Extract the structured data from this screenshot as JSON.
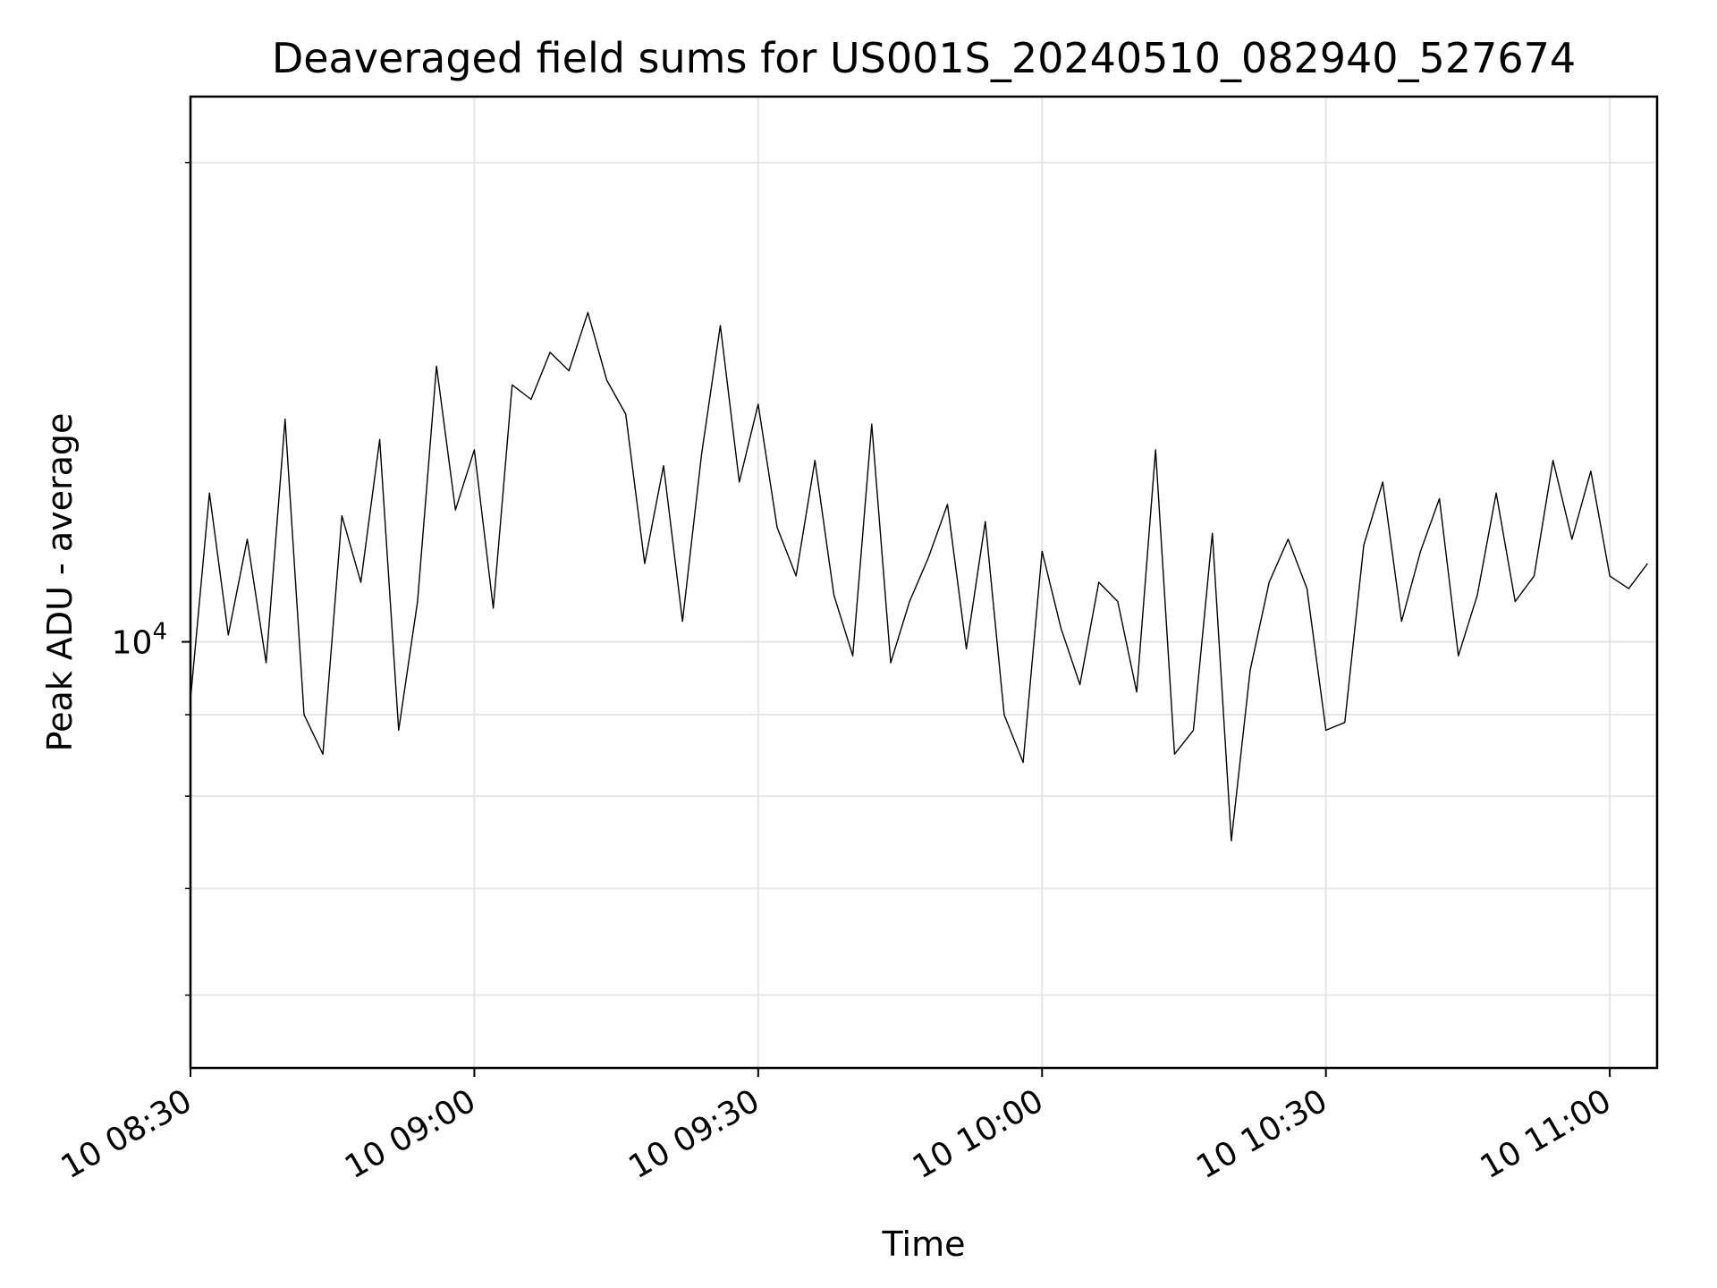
{
  "chart_data": {
    "type": "line",
    "title": "Deaveraged field sums for US001S_20240510_082940_527674",
    "xlabel": "Time",
    "ylabel": "Peak ADU - average",
    "yscale": "log",
    "grid": true,
    "line_color": "#000000",
    "xlim": [
      "2024-05-10 08:30",
      "2024-05-10 11:05"
    ],
    "ylim": [
      5400,
      22000
    ],
    "x_ticks": [
      {
        "label": "10 08:30",
        "value": "2024-05-10 08:30"
      },
      {
        "label": "10 09:00",
        "value": "2024-05-10 09:00"
      },
      {
        "label": "10 09:30",
        "value": "2024-05-10 09:30"
      },
      {
        "label": "10 10:00",
        "value": "2024-05-10 10:00"
      },
      {
        "label": "10 10:30",
        "value": "2024-05-10 10:30"
      },
      {
        "label": "10 11:00",
        "value": "2024-05-10 11:00"
      }
    ],
    "y_ticks": [
      {
        "label": "10",
        "sup": "4",
        "value": 10000
      }
    ],
    "series": [
      {
        "x": [
          "2024-05-10 08:30",
          "2024-05-10 08:32",
          "2024-05-10 08:34",
          "2024-05-10 08:36",
          "2024-05-10 08:38",
          "2024-05-10 08:40",
          "2024-05-10 08:42",
          "2024-05-10 08:44",
          "2024-05-10 08:46",
          "2024-05-10 08:48",
          "2024-05-10 08:50",
          "2024-05-10 08:52",
          "2024-05-10 08:54",
          "2024-05-10 08:56",
          "2024-05-10 08:58",
          "2024-05-10 09:00",
          "2024-05-10 09:02",
          "2024-05-10 09:04",
          "2024-05-10 09:06",
          "2024-05-10 09:08",
          "2024-05-10 09:10",
          "2024-05-10 09:12",
          "2024-05-10 09:14",
          "2024-05-10 09:16",
          "2024-05-10 09:18",
          "2024-05-10 09:20",
          "2024-05-10 09:22",
          "2024-05-10 09:24",
          "2024-05-10 09:26",
          "2024-05-10 09:28",
          "2024-05-10 09:30",
          "2024-05-10 09:32",
          "2024-05-10 09:34",
          "2024-05-10 09:36",
          "2024-05-10 09:38",
          "2024-05-10 09:40",
          "2024-05-10 09:42",
          "2024-05-10 09:44",
          "2024-05-10 09:46",
          "2024-05-10 09:48",
          "2024-05-10 09:50",
          "2024-05-10 09:52",
          "2024-05-10 09:54",
          "2024-05-10 09:56",
          "2024-05-10 09:58",
          "2024-05-10 10:00",
          "2024-05-10 10:02",
          "2024-05-10 10:04",
          "2024-05-10 10:06",
          "2024-05-10 10:08",
          "2024-05-10 10:10",
          "2024-05-10 10:12",
          "2024-05-10 10:14",
          "2024-05-10 10:16",
          "2024-05-10 10:18",
          "2024-05-10 10:20",
          "2024-05-10 10:22",
          "2024-05-10 10:24",
          "2024-05-10 10:26",
          "2024-05-10 10:28",
          "2024-05-10 10:30",
          "2024-05-10 10:32",
          "2024-05-10 10:34",
          "2024-05-10 10:36",
          "2024-05-10 10:38",
          "2024-05-10 10:40",
          "2024-05-10 10:42",
          "2024-05-10 10:44",
          "2024-05-10 10:46",
          "2024-05-10 10:48",
          "2024-05-10 10:50",
          "2024-05-10 10:52",
          "2024-05-10 10:54",
          "2024-05-10 10:56",
          "2024-05-10 10:58",
          "2024-05-10 11:00",
          "2024-05-10 11:02",
          "2024-05-10 11:04"
        ],
        "y": [
          9200,
          12400,
          10100,
          11600,
          9700,
          13800,
          9000,
          8500,
          12000,
          10900,
          13400,
          8800,
          10600,
          14900,
          12100,
          13200,
          10500,
          14500,
          14200,
          15200,
          14800,
          16100,
          14600,
          13900,
          11200,
          12900,
          10300,
          13100,
          15800,
          12600,
          14100,
          11800,
          11000,
          13000,
          10700,
          9800,
          13700,
          9700,
          10600,
          11300,
          12200,
          9900,
          11900,
          9000,
          8400,
          11400,
          10200,
          9400,
          10900,
          10600,
          9300,
          13200,
          8500,
          8800,
          11700,
          7500,
          9600,
          10900,
          11600,
          10800,
          8800,
          8900,
          11500,
          12600,
          10300,
          11400,
          12300,
          9800,
          10700,
          12400,
          10600,
          11000,
          13000,
          11600,
          12800,
          11000,
          10800,
          11200
        ]
      }
    ]
  }
}
